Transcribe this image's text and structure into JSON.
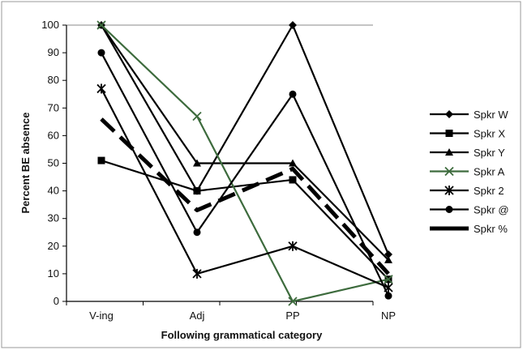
{
  "chart_data": {
    "type": "line",
    "title": "",
    "xlabel": "Following grammatical category",
    "ylabel": "Percent BE absence",
    "categories": [
      "V-ing",
      "Adj",
      "PP",
      "NP"
    ],
    "ylim": [
      0,
      100
    ],
    "yticks": [
      0,
      10,
      20,
      30,
      40,
      50,
      60,
      70,
      80,
      90,
      100
    ],
    "legend_position": "right",
    "grid": false,
    "series": [
      {
        "name": "Spkr W",
        "marker": "diamond",
        "color": "#000000",
        "values": [
          100,
          40,
          100,
          17
        ]
      },
      {
        "name": "Spkr X",
        "marker": "square",
        "color": "#000000",
        "values": [
          51,
          40,
          44,
          8
        ]
      },
      {
        "name": "Spkr Y",
        "marker": "triangle",
        "color": "#000000",
        "values": [
          100,
          50,
          50,
          15
        ]
      },
      {
        "name": "Spkr A",
        "marker": "x",
        "color": "#3d6b3d",
        "values": [
          100,
          67,
          0,
          8
        ]
      },
      {
        "name": "Spkr 2",
        "marker": "asterisk",
        "color": "#000000",
        "values": [
          77,
          10,
          20,
          5
        ]
      },
      {
        "name": "Spkr @",
        "marker": "circle",
        "color": "#000000",
        "values": [
          90,
          25,
          75,
          2
        ]
      },
      {
        "name": "Spkr %",
        "marker": "none",
        "color": "#000000",
        "dashed": true,
        "values": [
          66,
          33,
          48,
          10
        ]
      }
    ]
  }
}
